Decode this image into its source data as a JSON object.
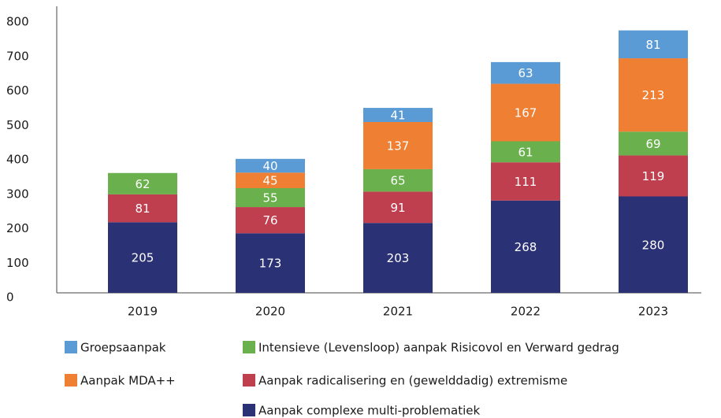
{
  "chart_data": {
    "type": "stacked_bar",
    "categories": [
      "2019",
      "2020",
      "2021",
      "2022",
      "2023"
    ],
    "series": [
      {
        "name": "Aanpak complexe multi-problematiek",
        "color": "#2b3175",
        "values": [
          205,
          173,
          203,
          268,
          280
        ]
      },
      {
        "name": "Aanpak radicalisering en (gewelddadig) extremisme",
        "color": "#bf3f4f",
        "values": [
          81,
          76,
          91,
          111,
          119
        ]
      },
      {
        "name": "Intensieve (Levensloop) aanpak Risicovol en Verward gedrag",
        "color": "#6ab04c",
        "values": [
          62,
          55,
          65,
          61,
          69
        ]
      },
      {
        "name": "Aanpak MDA++",
        "color": "#ef7f32",
        "values": [
          null,
          45,
          137,
          167,
          213
        ]
      },
      {
        "name": "Groepsaanpak",
        "color": "#5b9bd5",
        "values": [
          null,
          40,
          41,
          63,
          81
        ]
      }
    ],
    "ylim": [
      0,
      800
    ],
    "yticks": [
      0,
      100,
      200,
      300,
      400,
      500,
      600,
      700,
      800
    ]
  }
}
